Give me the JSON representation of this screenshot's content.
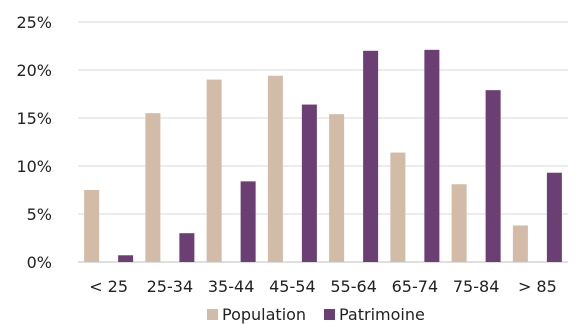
{
  "chart_data": {
    "type": "bar",
    "categories": [
      "< 25",
      "25-34",
      "35-44",
      "45-54",
      "55-64",
      "65-74",
      "75-84",
      "> 85"
    ],
    "series": [
      {
        "name": "Population",
        "values": [
          7.5,
          15.5,
          19.0,
          19.4,
          15.4,
          11.4,
          8.1,
          3.8
        ],
        "color": "#d2bba7"
      },
      {
        "name": "Patrimoine",
        "values": [
          0.7,
          3.0,
          8.4,
          16.4,
          22.0,
          22.1,
          17.9,
          9.3
        ],
        "color": "#6b3f73"
      }
    ],
    "y_ticks": [
      "0%",
      "5%",
      "10%",
      "15%",
      "20%",
      "25%"
    ],
    "ylim": [
      0,
      25
    ],
    "grid": true,
    "legend": "bottom",
    "title": "",
    "xlabel": "",
    "ylabel": ""
  }
}
